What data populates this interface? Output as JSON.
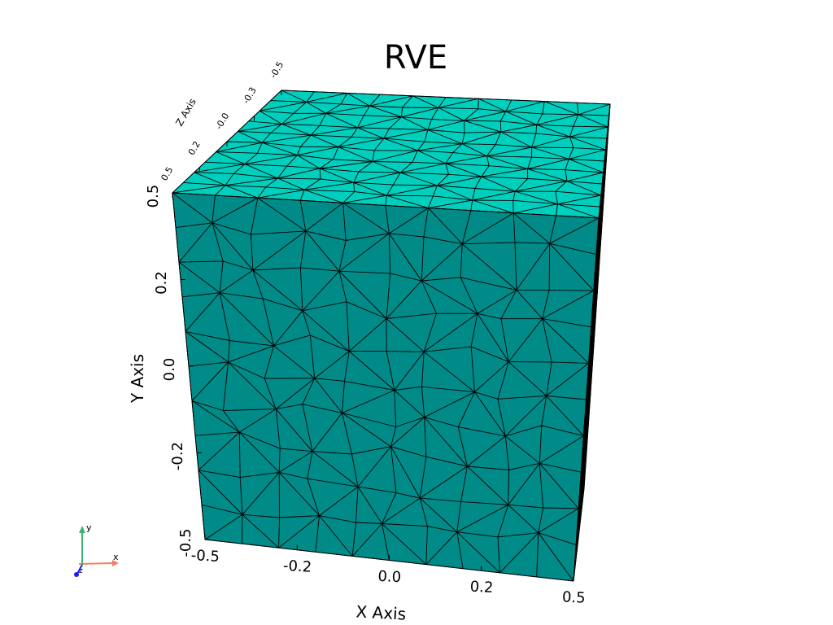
{
  "title": "RVE",
  "colors": {
    "background": "#ffffff",
    "mesh_edge": "#000000",
    "face_top": "#00cfbe",
    "face_front": "#008b89",
    "face_right": "#004d4c",
    "axis_x": "#f08060",
    "axis_y": "#3cb371",
    "axis_z": "#1a1aff"
  },
  "axes": {
    "x": {
      "label": "X Axis",
      "ticks": [
        "-0.5",
        "-0.2",
        "0.0",
        "0.2",
        "0.5"
      ],
      "values": [
        -0.5,
        -0.25,
        0.0,
        0.25,
        0.5
      ]
    },
    "y": {
      "label": "Y Axis",
      "ticks": [
        "-0.5",
        "-0.2",
        "0.0",
        "0.2",
        "0.5"
      ],
      "values": [
        -0.5,
        -0.25,
        0.0,
        0.25,
        0.5
      ]
    },
    "z": {
      "label": "Z Axis",
      "ticks": [
        "0.5",
        "0.2",
        "-0.0",
        "-0.3",
        "-0.5"
      ],
      "values": [
        0.5,
        0.25,
        0.0,
        -0.25,
        -0.5
      ]
    }
  },
  "orientation_widget": {
    "x_label": "x",
    "y_label": "y",
    "z_label": "z"
  },
  "mesh": {
    "divisions": 10,
    "element": "triangle"
  }
}
